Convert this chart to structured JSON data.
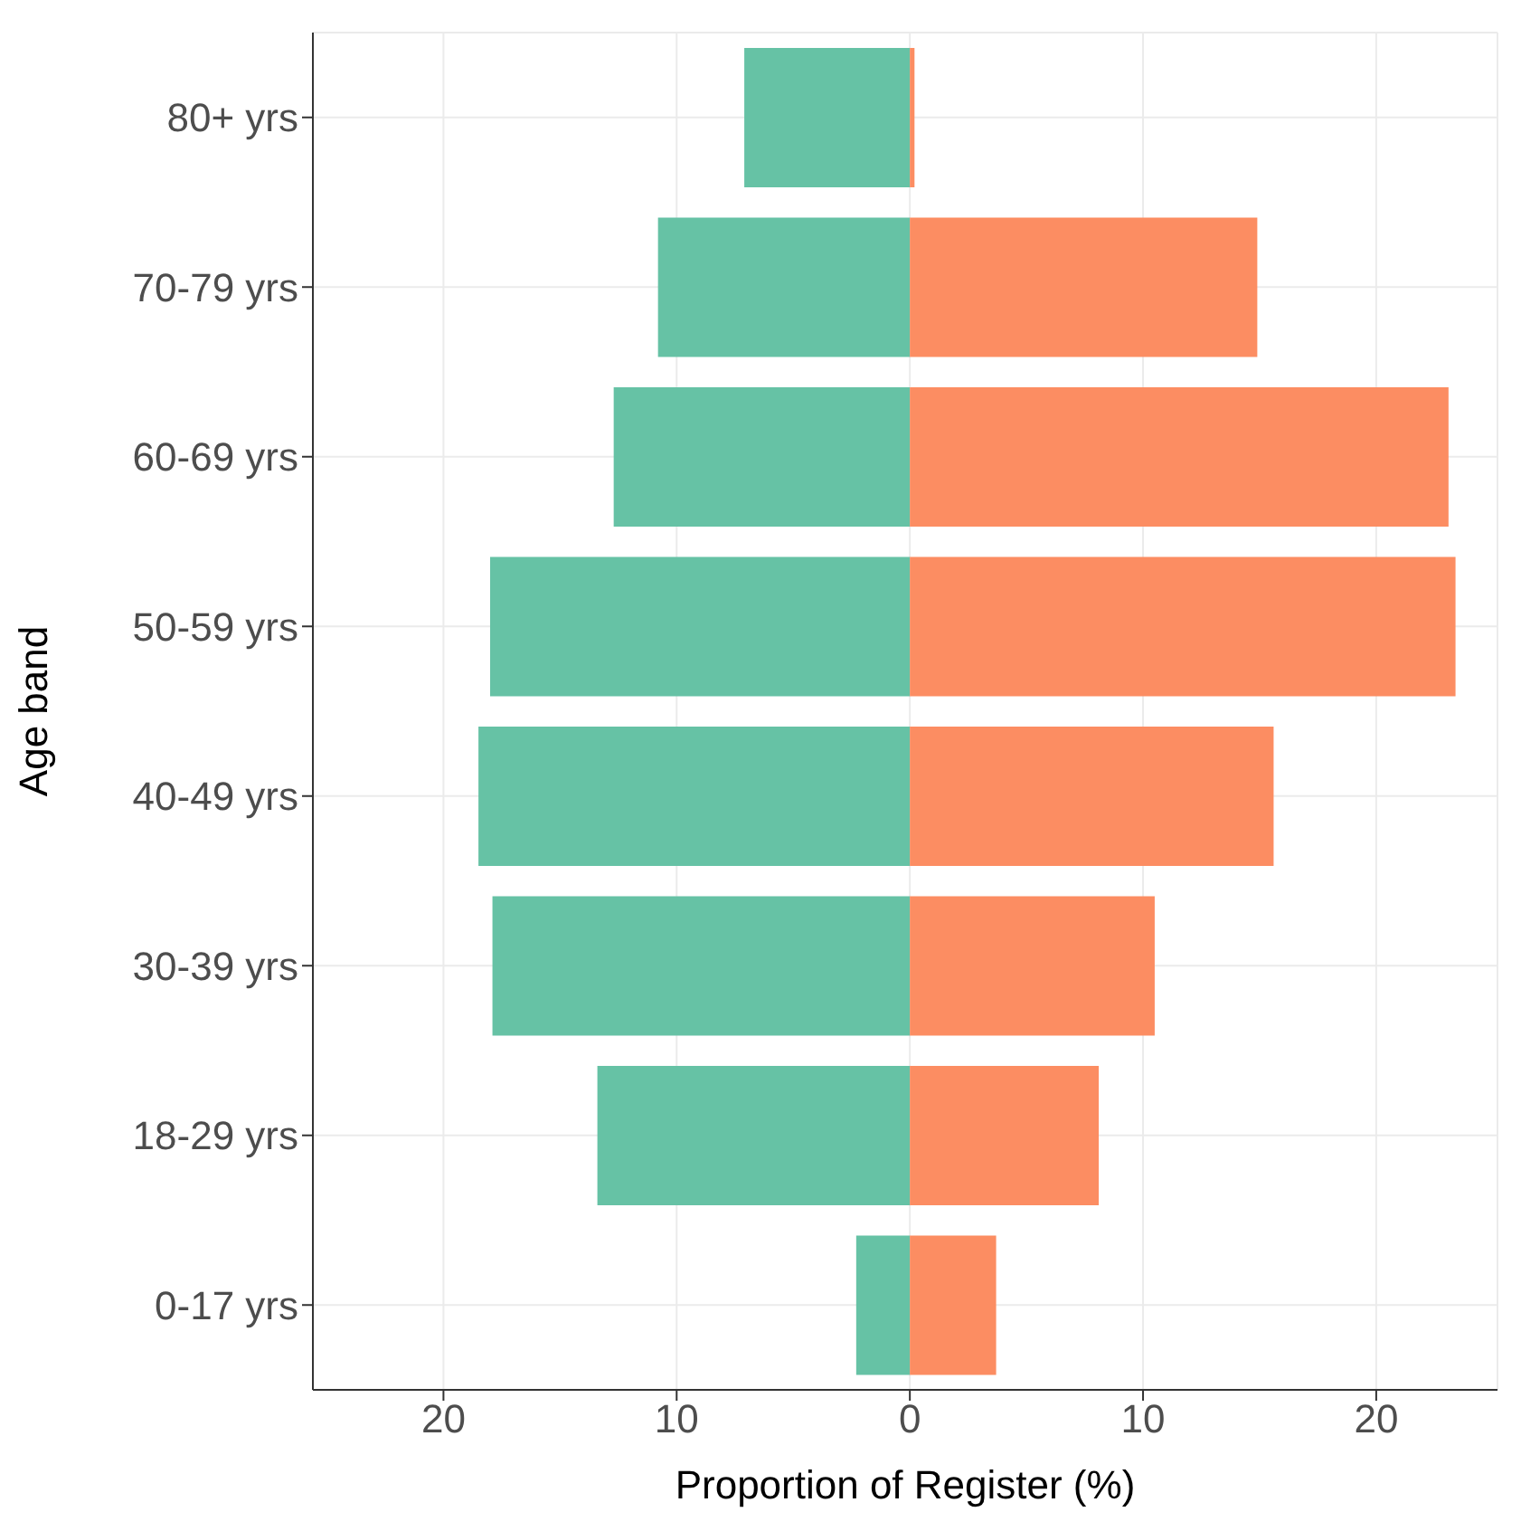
{
  "chart_data": {
    "type": "bar",
    "orientation": "horizontal",
    "stacked": true,
    "xlabel": "Proportion of Register (%)",
    "ylabel": "Age band",
    "categories": [
      "80+ yrs",
      "70-79 yrs",
      "60-69 yrs",
      "50-59 yrs",
      "40-49 yrs",
      "30-39 yrs",
      "18-29 yrs",
      "0-17 yrs"
    ],
    "series": [
      {
        "color": "#66c2a5",
        "values": [
          -7.1,
          -10.8,
          -12.7,
          -18.0,
          -18.5,
          -17.9,
          -13.4,
          -2.3
        ]
      },
      {
        "color": "#fc8d62",
        "values": [
          0.2,
          14.9,
          23.1,
          23.4,
          15.6,
          10.5,
          8.1,
          3.7
        ]
      }
    ],
    "xlim": [
      -25.6,
      25.2
    ],
    "xticks": [
      {
        "value": -20,
        "label": "20"
      },
      {
        "value": -10,
        "label": "10"
      },
      0,
      10,
      20
    ],
    "grid": true,
    "legend": false
  }
}
